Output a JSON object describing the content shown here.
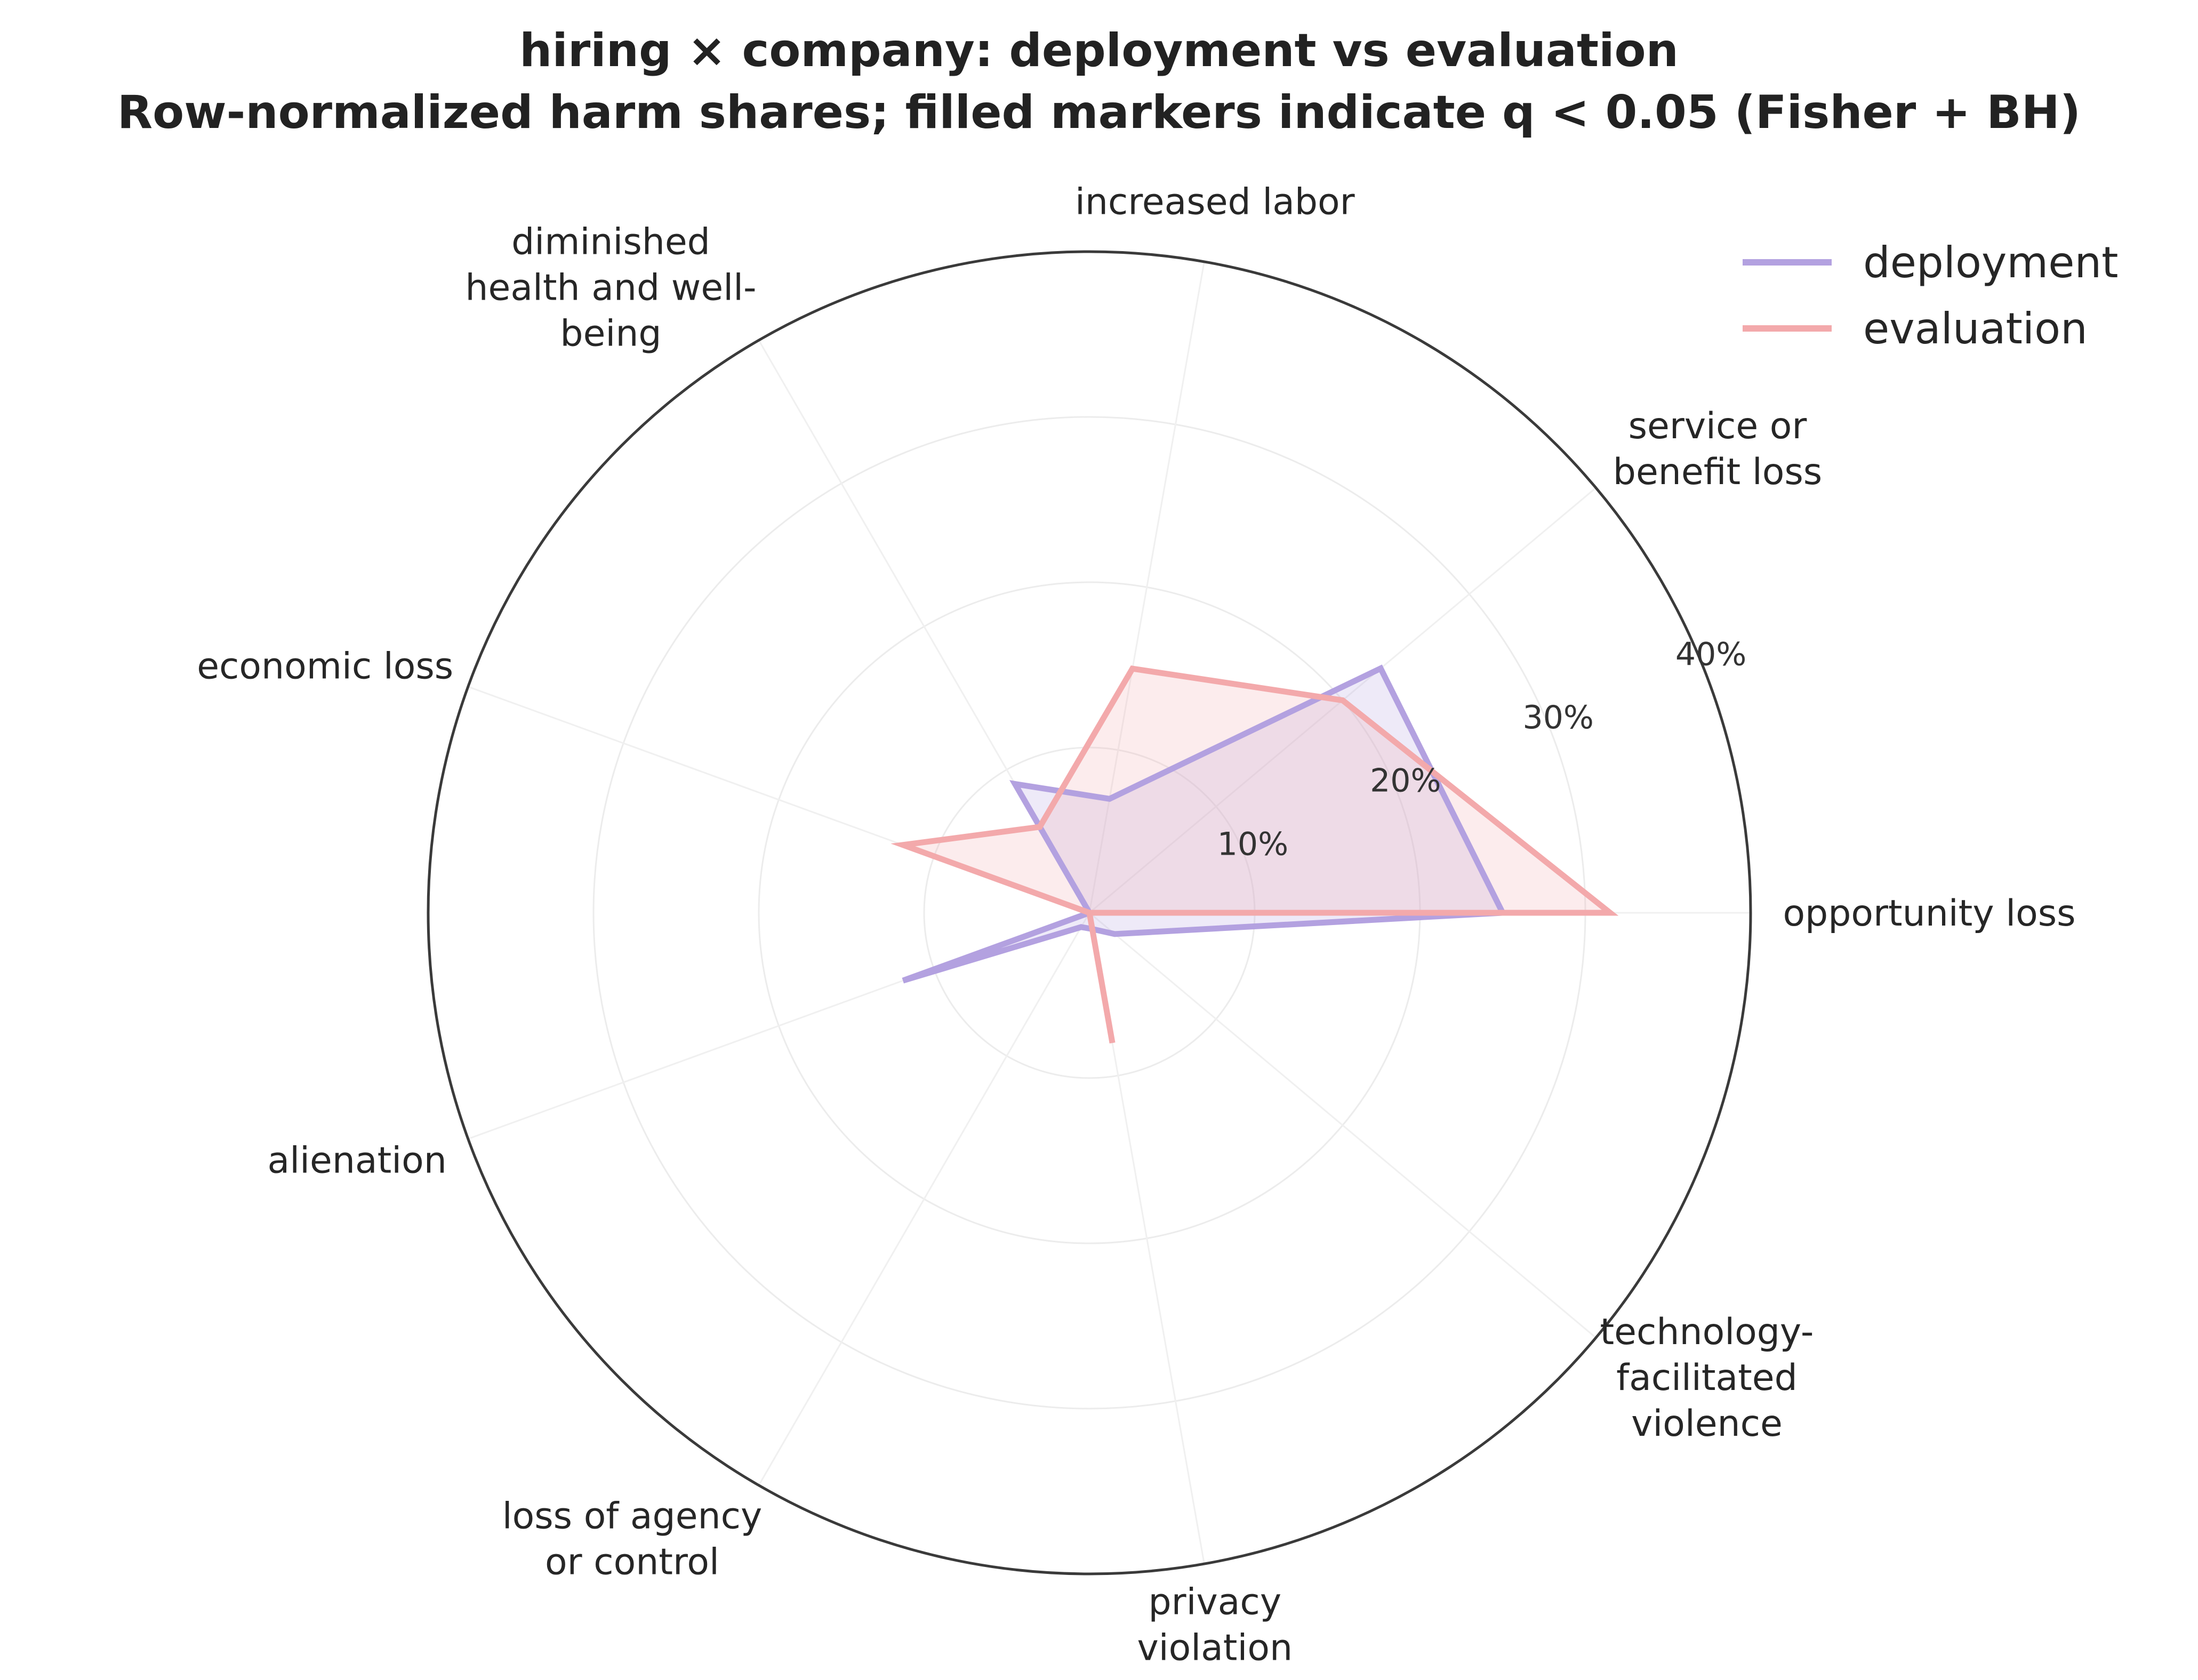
{
  "chart_data": {
    "type": "radar",
    "title": "hiring × company: deployment vs evaluation",
    "subtitle": "Row-normalized harm shares; filled markers indicate q < 0.05 (Fisher + BH)",
    "categories": [
      "opportunity loss",
      "service or benefit loss",
      "increased labor",
      "diminished health and well-being",
      "economic loss",
      "alienation",
      "loss of agency or control",
      "privacy violation",
      "technology-facilitated violence"
    ],
    "category_lines": [
      [
        "opportunity loss"
      ],
      [
        "service or",
        "benefit loss"
      ],
      [
        "increased labor"
      ],
      [
        "diminished",
        "health and well-",
        "being"
      ],
      [
        "economic loss"
      ],
      [
        "alienation"
      ],
      [
        "loss of agency",
        "or control"
      ],
      [
        "privacy",
        "violation"
      ],
      [
        "technology-",
        "facilitated",
        "violence"
      ]
    ],
    "radial_ticks": [
      "10%",
      "20%",
      "30%",
      "40%"
    ],
    "radial_tick_values": [
      10,
      20,
      30,
      40
    ],
    "rlim": [
      0,
      40
    ],
    "unit": "%",
    "legend_position": "top-right",
    "series": [
      {
        "name": "deployment",
        "color": "#b3a1e0",
        "values": [
          25,
          23,
          7,
          9,
          0,
          12,
          1,
          1,
          2
        ]
      },
      {
        "name": "evaluation",
        "color": "#f3a9ab",
        "values": [
          31.5,
          20,
          15,
          6,
          12,
          0,
          0,
          8,
          0
        ]
      }
    ]
  }
}
